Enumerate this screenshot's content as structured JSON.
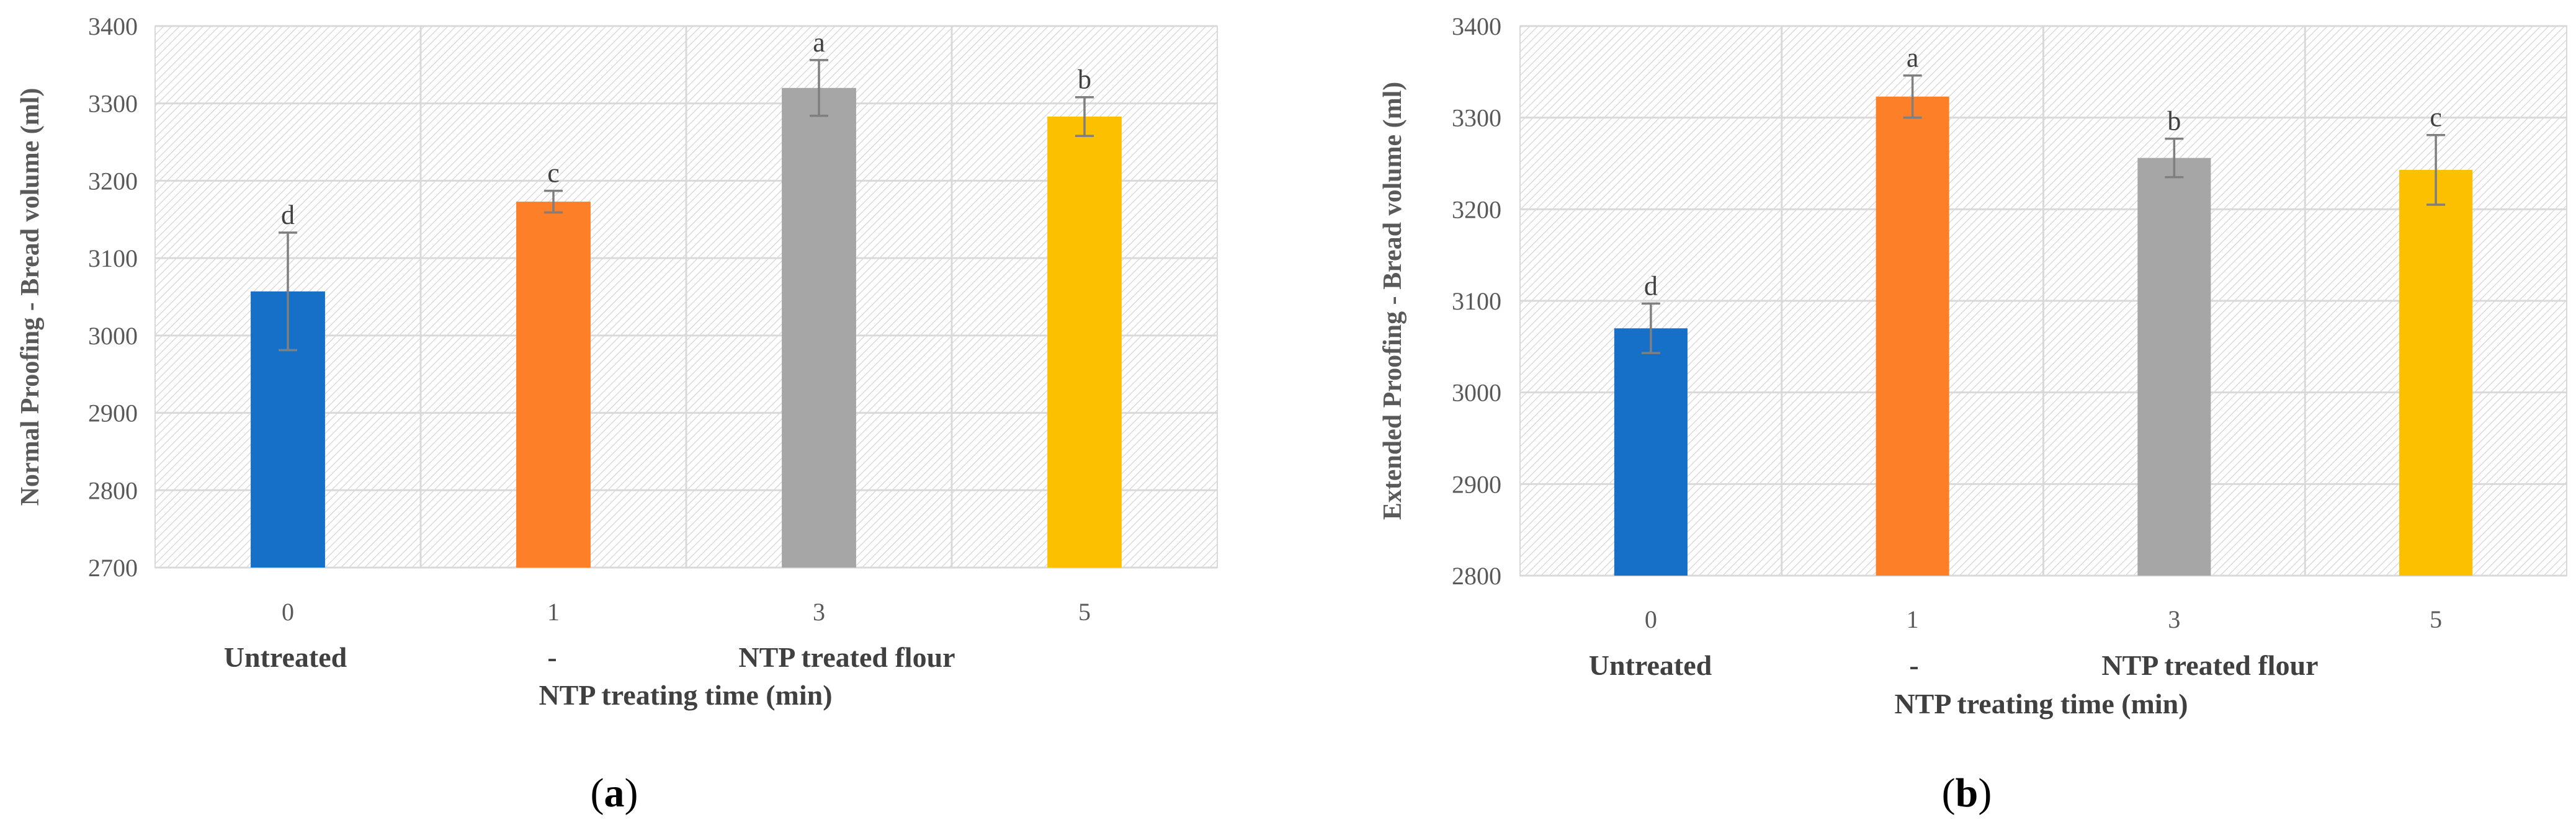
{
  "chart_data": [
    {
      "type": "bar",
      "panel_label": "(a)",
      "ylabel": "Normal Proofing - Bread volume (ml)",
      "xlabel": "NTP treating time (min)",
      "categories": [
        "0",
        "1",
        "3",
        "5"
      ],
      "group_labels": [
        "Untreated",
        "-",
        "NTP treated flour"
      ],
      "ylim": [
        2700,
        3400
      ],
      "yticks": [
        2700,
        2800,
        2900,
        3000,
        3100,
        3200,
        3300,
        3400
      ],
      "values": [
        3057,
        3173,
        3320,
        3283
      ],
      "errors": [
        76,
        14,
        36,
        25
      ],
      "significance": [
        "d",
        "c",
        "a",
        "b"
      ],
      "colors": [
        "#1670c8",
        "#fd7f27",
        "#a6a6a6",
        "#fdc000"
      ],
      "grid": true
    },
    {
      "type": "bar",
      "panel_label": "(b)",
      "ylabel": "Extended Proofing - Bread volume (ml)",
      "xlabel": "NTP treating time (min)",
      "categories": [
        "0",
        "1",
        "3",
        "5"
      ],
      "group_labels": [
        "Untreated",
        "-",
        "NTP treated flour"
      ],
      "ylim": [
        2800,
        3400
      ],
      "yticks": [
        2800,
        2900,
        3000,
        3100,
        3200,
        3300,
        3400
      ],
      "values": [
        3070,
        3323,
        3256,
        3243
      ],
      "errors": [
        27,
        23,
        21,
        38
      ],
      "significance": [
        "d",
        "a",
        "b",
        "c"
      ],
      "colors": [
        "#1670c8",
        "#fd7f27",
        "#a6a6a6",
        "#fdc000"
      ],
      "grid": true
    }
  ]
}
